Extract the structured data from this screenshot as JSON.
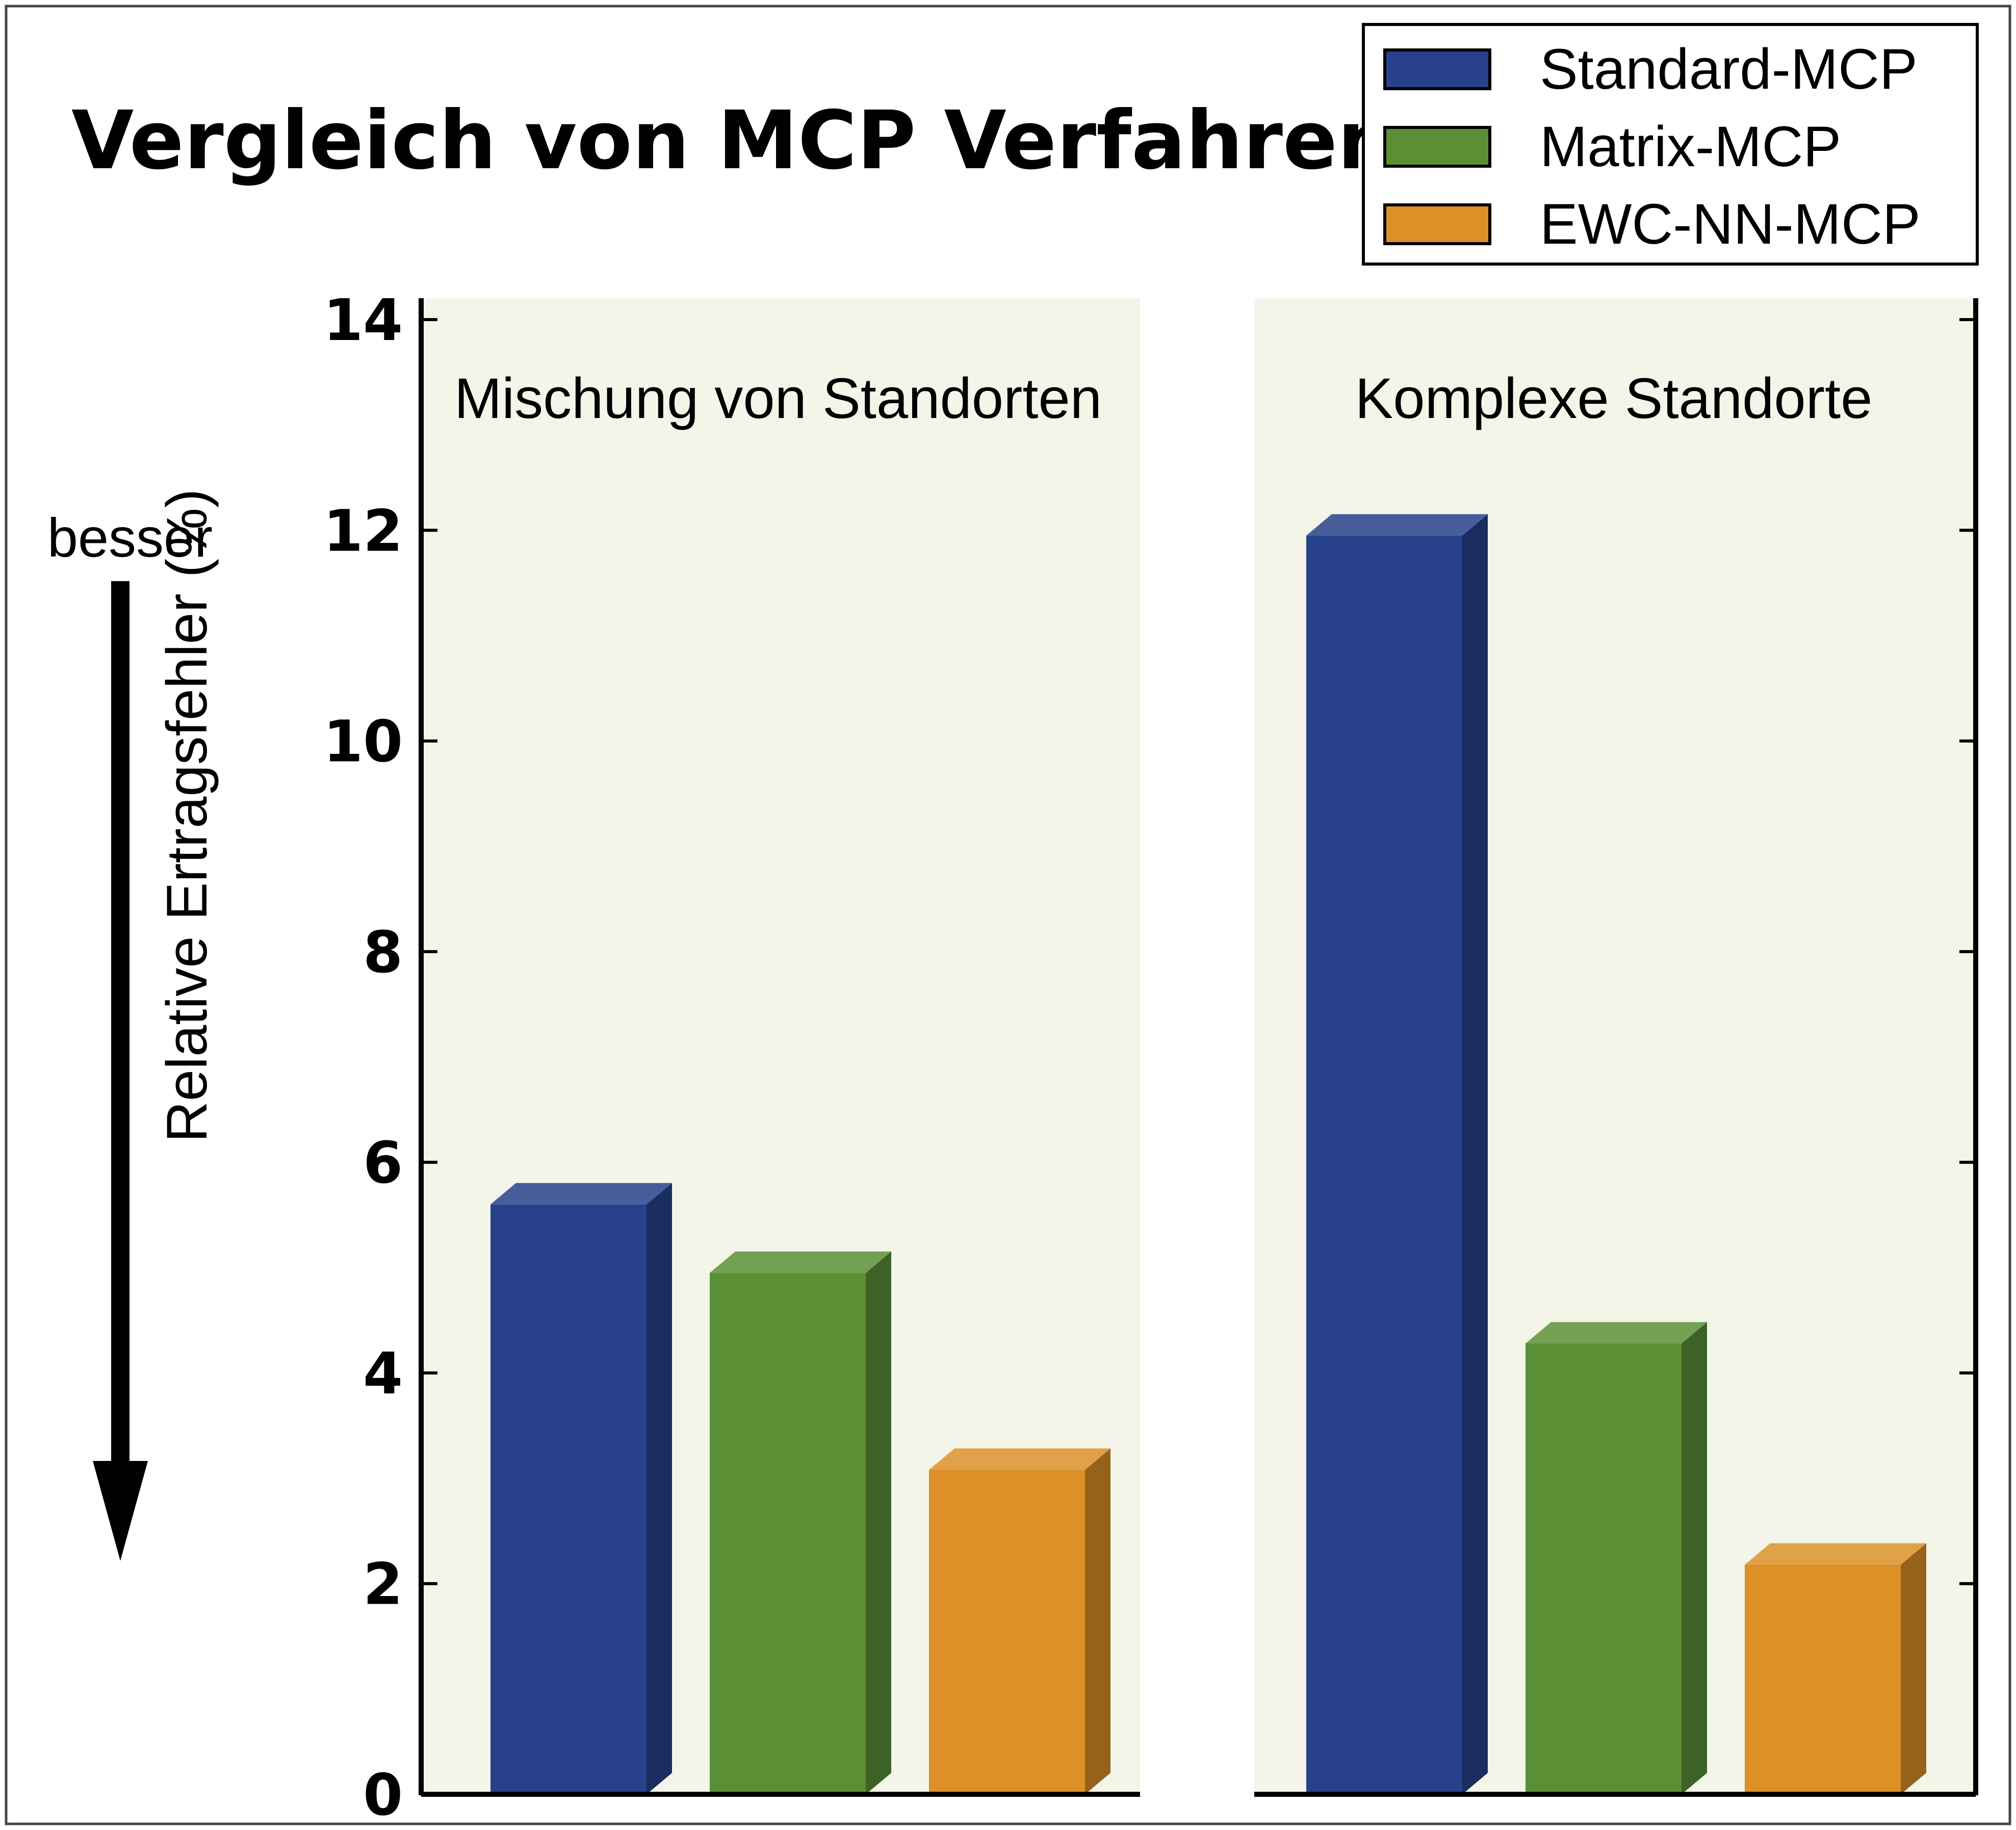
{
  "chart_data": {
    "type": "bar",
    "title": "Vergleich von MCP Verfahren",
    "ylabel": "Relative Ertragsfehler (%)",
    "direction_label": "besser",
    "ylim": [
      0,
      14.3
    ],
    "yticks": [
      0,
      2,
      4,
      6,
      8,
      10,
      12,
      14
    ],
    "categories": [
      "Mischung von Standorten",
      "Komplexe Standorte"
    ],
    "series": [
      {
        "name": "Standard-MCP",
        "values": [
          5.6,
          11.95
        ],
        "color": "#27418a"
      },
      {
        "name": "Matrix-MCP",
        "values": [
          4.95,
          4.28
        ],
        "color": "#5b8f36"
      },
      {
        "name": "EWC-NN-MCP",
        "values": [
          3.08,
          2.18
        ],
        "color": "#dc9028"
      }
    ],
    "panel_background": "#f2f5e8",
    "legend_position": "top-right",
    "grid": false
  }
}
